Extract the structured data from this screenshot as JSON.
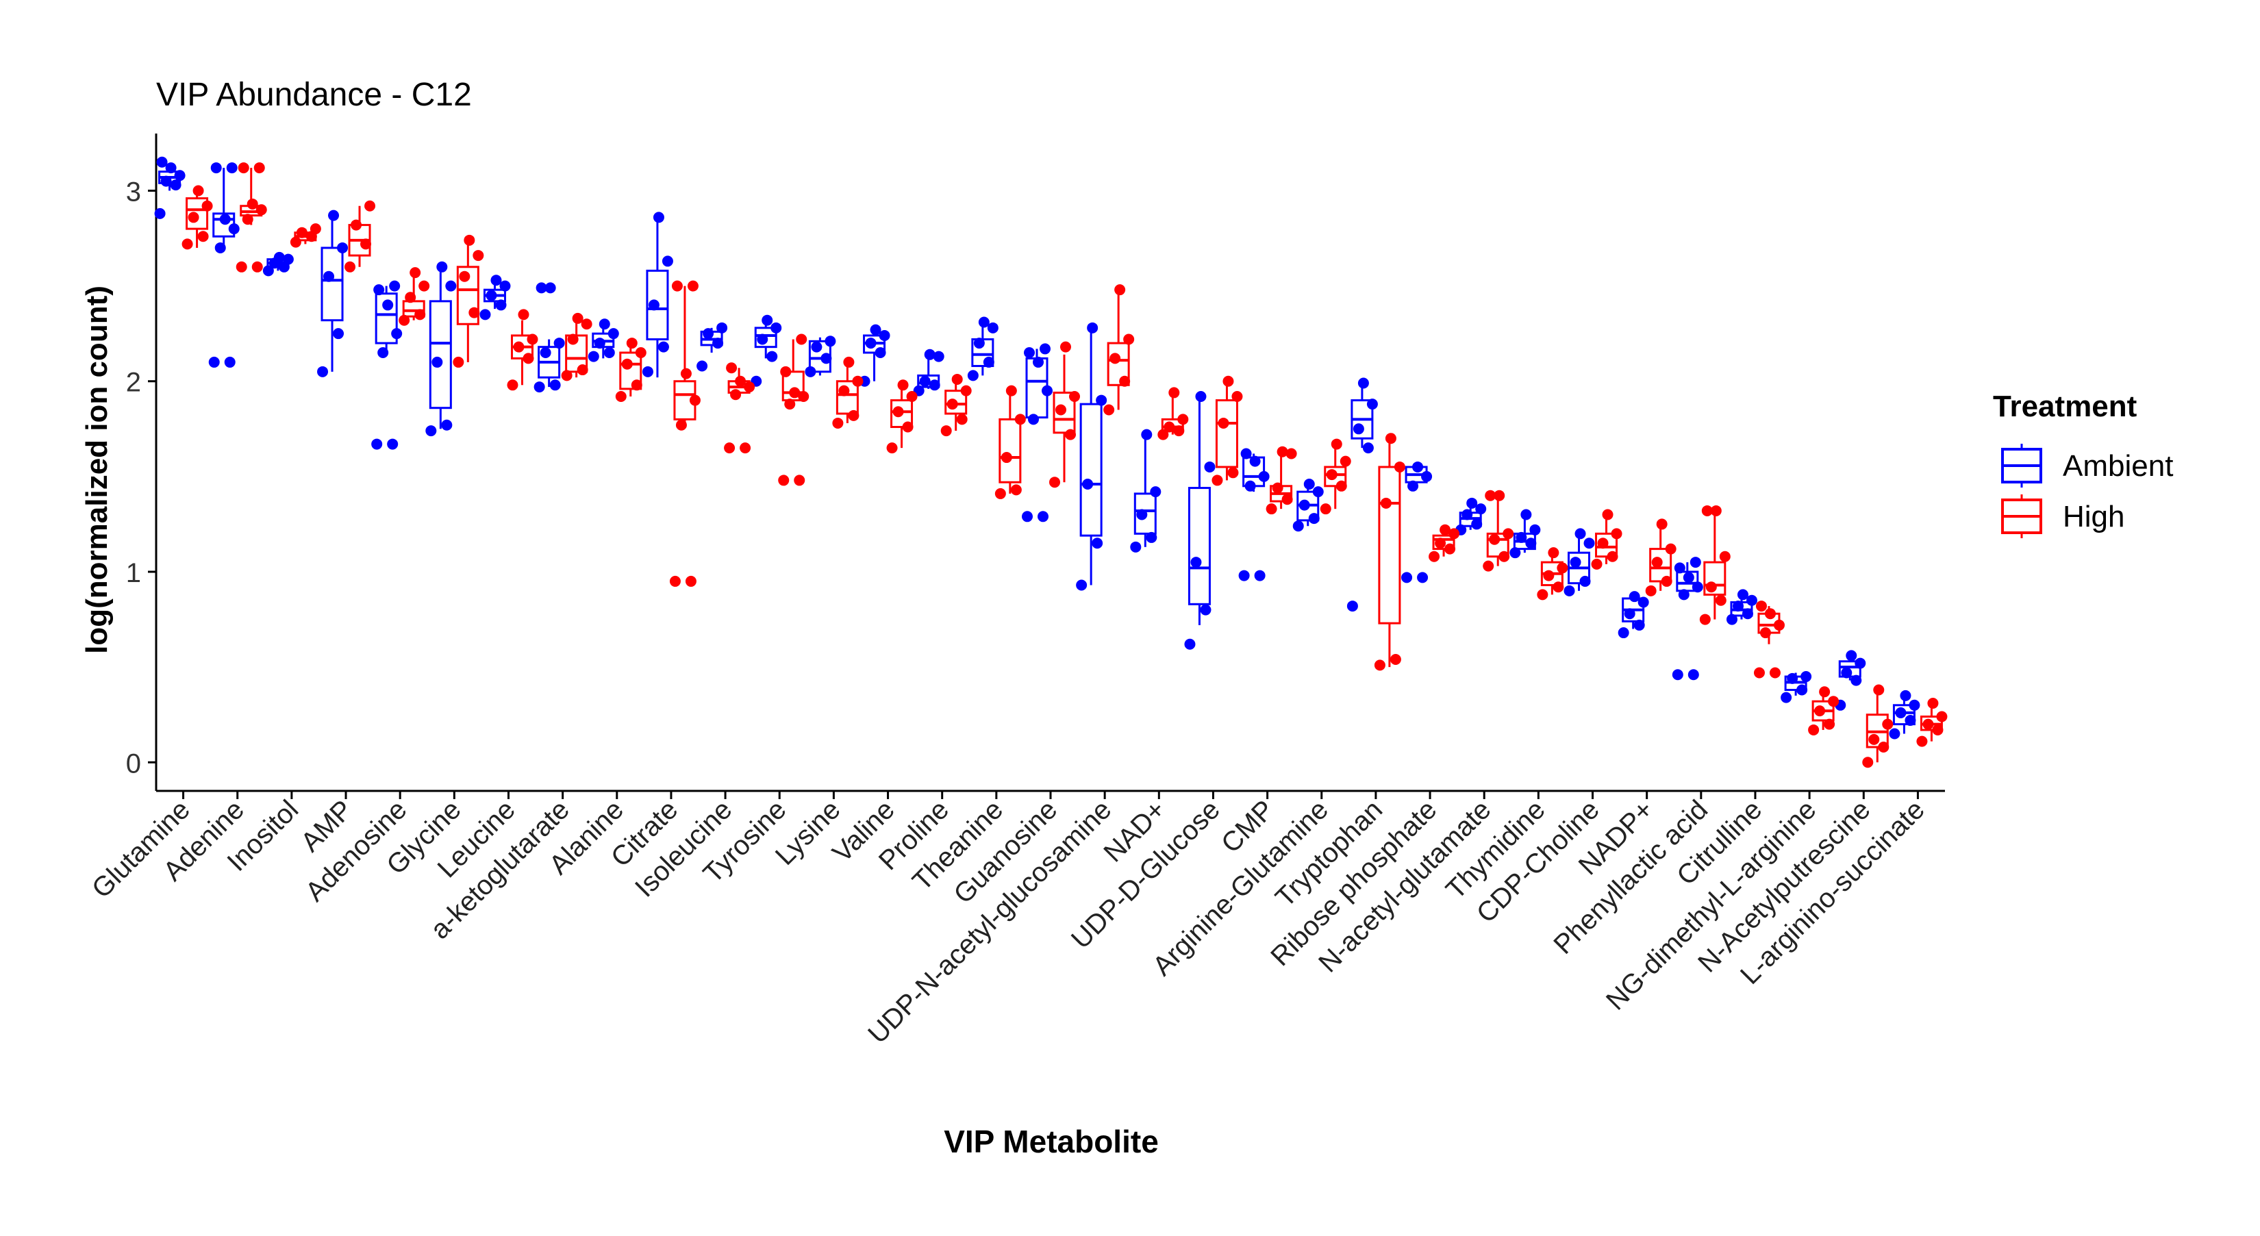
{
  "chart_data": {
    "type": "box",
    "title": "VIP Abundance - C12",
    "xlabel": "VIP Metabolite",
    "ylabel": "log(normalized ion count)",
    "ylim": [
      -0.15,
      3.3
    ],
    "yticks": [
      0,
      1,
      2,
      3
    ],
    "legend": {
      "title": "Treatment",
      "position": "right"
    },
    "colors": {
      "Ambient": "#0000ff",
      "High": "#ff0000"
    },
    "categories": [
      "Glutamine",
      "Adenine",
      "Inositol",
      "AMP",
      "Adenosine",
      "Glycine",
      "Leucine",
      "a-ketoglutarate",
      "Alanine",
      "Citrate",
      "Isoleucine",
      "Tyrosine",
      "Lysine",
      "Valine",
      "Proline",
      "Theanine",
      "Guanosine",
      "UDP-N-acetyl-glucosamine",
      "NAD+",
      "UDP-D-Glucose",
      "CMP",
      "Arginine-Glutamine",
      "Tryptophan",
      "Ribose phosphate",
      "N-acetyl-glutamate",
      "Thymidine",
      "CDP-Choline",
      "NADP+",
      "Phenyllactic acid",
      "Citrulline",
      "NG-dimethyl-L-arginine",
      "N-Acetylputrescine",
      "L-arginino-succinate"
    ],
    "series": [
      {
        "name": "Ambient",
        "boxes": [
          [
            3.0,
            3.04,
            3.07,
            3.1,
            3.14
          ],
          [
            2.7,
            2.76,
            2.85,
            2.88,
            3.12
          ],
          [
            2.58,
            2.6,
            2.62,
            2.64,
            2.65
          ],
          [
            2.05,
            2.32,
            2.53,
            2.7,
            2.87
          ],
          [
            2.15,
            2.2,
            2.35,
            2.46,
            2.5
          ],
          [
            1.75,
            1.86,
            2.2,
            2.42,
            2.6
          ],
          [
            2.38,
            2.42,
            2.45,
            2.48,
            2.52
          ],
          [
            1.97,
            2.02,
            2.1,
            2.18,
            2.22
          ],
          [
            2.12,
            2.18,
            2.21,
            2.25,
            2.3
          ],
          [
            2.02,
            2.22,
            2.38,
            2.58,
            2.86
          ],
          [
            2.15,
            2.19,
            2.22,
            2.26,
            2.28
          ],
          [
            2.12,
            2.18,
            2.24,
            2.28,
            2.32
          ],
          [
            2.03,
            2.05,
            2.12,
            2.21,
            2.23
          ],
          [
            2.0,
            2.15,
            2.2,
            2.24,
            2.27
          ],
          [
            1.96,
            1.97,
            1.99,
            2.03,
            2.14
          ],
          [
            2.03,
            2.08,
            2.14,
            2.22,
            2.3
          ],
          [
            1.8,
            1.81,
            2.0,
            2.12,
            2.17
          ],
          [
            0.93,
            1.19,
            1.46,
            1.88,
            2.28
          ],
          [
            1.13,
            1.2,
            1.32,
            1.41,
            1.72
          ],
          [
            0.72,
            0.83,
            1.02,
            1.44,
            1.92
          ],
          [
            1.42,
            1.45,
            1.5,
            1.6,
            1.62
          ],
          [
            1.24,
            1.27,
            1.35,
            1.42,
            1.46
          ],
          [
            1.65,
            1.7,
            1.8,
            1.9,
            1.99
          ],
          [
            1.45,
            1.47,
            1.51,
            1.55,
            1.55
          ],
          [
            1.22,
            1.24,
            1.28,
            1.31,
            1.36
          ],
          [
            1.1,
            1.12,
            1.16,
            1.2,
            1.3
          ],
          [
            0.9,
            0.94,
            1.02,
            1.1,
            1.2
          ],
          [
            0.7,
            0.74,
            0.8,
            0.86,
            0.87
          ],
          [
            0.88,
            0.9,
            0.94,
            1.0,
            1.05
          ],
          [
            0.75,
            0.77,
            0.8,
            0.84,
            0.87
          ],
          [
            0.35,
            0.38,
            0.42,
            0.45,
            0.47
          ],
          [
            0.43,
            0.45,
            0.5,
            0.53,
            0.56
          ],
          [
            0.15,
            0.2,
            0.26,
            0.3,
            0.35
          ]
        ],
        "points": [
          [
            2.88,
            3.03,
            3.05,
            3.08,
            3.12,
            3.15
          ],
          [
            2.1,
            2.1,
            2.7,
            2.8,
            2.85,
            3.12,
            3.12
          ],
          [
            2.58,
            2.6,
            2.62,
            2.64,
            2.65
          ],
          [
            2.05,
            2.25,
            2.55,
            2.7,
            2.87
          ],
          [
            1.67,
            1.67,
            2.15,
            2.25,
            2.4,
            2.48,
            2.5
          ],
          [
            1.74,
            1.77,
            2.1,
            2.5,
            2.6
          ],
          [
            2.35,
            2.4,
            2.45,
            2.5,
            2.53
          ],
          [
            1.97,
            1.98,
            2.15,
            2.2,
            2.49,
            2.49
          ],
          [
            2.13,
            2.15,
            2.2,
            2.25,
            2.3
          ],
          [
            2.05,
            2.18,
            2.4,
            2.63,
            2.86
          ],
          [
            2.08,
            2.2,
            2.25,
            2.28
          ],
          [
            2.0,
            2.13,
            2.22,
            2.28,
            2.32
          ],
          [
            2.05,
            2.12,
            2.18,
            2.21
          ],
          [
            2.0,
            2.15,
            2.2,
            2.24,
            2.27
          ],
          [
            1.95,
            1.98,
            2.0,
            2.13,
            2.14
          ],
          [
            2.03,
            2.1,
            2.2,
            2.28,
            2.31
          ],
          [
            1.29,
            1.29,
            1.8,
            1.95,
            2.1,
            2.15,
            2.17
          ],
          [
            0.93,
            1.15,
            1.46,
            1.9,
            2.28
          ],
          [
            1.13,
            1.18,
            1.3,
            1.42,
            1.72
          ],
          [
            0.62,
            0.8,
            1.05,
            1.55,
            1.92
          ],
          [
            0.98,
            0.98,
            1.45,
            1.5,
            1.58,
            1.62
          ],
          [
            1.24,
            1.28,
            1.35,
            1.42,
            1.46
          ],
          [
            0.82,
            1.65,
            1.75,
            1.88,
            1.99
          ],
          [
            0.97,
            0.97,
            1.45,
            1.5,
            1.55
          ],
          [
            1.22,
            1.25,
            1.3,
            1.33,
            1.36
          ],
          [
            1.1,
            1.15,
            1.18,
            1.22,
            1.3
          ],
          [
            0.9,
            0.95,
            1.05,
            1.15,
            1.2
          ],
          [
            0.68,
            0.72,
            0.78,
            0.84,
            0.87
          ],
          [
            0.46,
            0.46,
            0.88,
            0.92,
            0.97,
            1.02,
            1.05
          ],
          [
            0.75,
            0.78,
            0.82,
            0.85,
            0.88
          ],
          [
            0.34,
            0.38,
            0.44,
            0.45
          ],
          [
            0.3,
            0.43,
            0.47,
            0.52,
            0.56
          ],
          [
            0.15,
            0.22,
            0.26,
            0.3,
            0.35
          ]
        ]
      },
      {
        "name": "High",
        "boxes": [
          [
            2.7,
            2.8,
            2.9,
            2.96,
            3.0
          ],
          [
            2.82,
            2.87,
            2.89,
            2.92,
            3.12
          ],
          [
            2.72,
            2.74,
            2.76,
            2.78,
            2.8
          ],
          [
            2.6,
            2.66,
            2.74,
            2.82,
            2.92
          ],
          [
            2.32,
            2.34,
            2.37,
            2.42,
            2.57
          ],
          [
            2.1,
            2.3,
            2.48,
            2.6,
            2.74
          ],
          [
            1.98,
            2.12,
            2.18,
            2.24,
            2.32
          ],
          [
            2.02,
            2.05,
            2.12,
            2.24,
            2.32
          ],
          [
            1.92,
            1.96,
            2.09,
            2.15,
            2.2
          ],
          [
            1.77,
            1.8,
            1.93,
            2.0,
            2.5
          ],
          [
            1.92,
            1.94,
            1.97,
            2.0,
            2.07
          ],
          [
            1.88,
            1.9,
            1.94,
            2.05,
            2.22
          ],
          [
            1.78,
            1.83,
            1.93,
            2.0,
            2.1
          ],
          [
            1.65,
            1.76,
            1.84,
            1.9,
            1.98
          ],
          [
            1.74,
            1.83,
            1.88,
            1.95,
            2.01
          ],
          [
            1.41,
            1.47,
            1.6,
            1.8,
            1.95
          ],
          [
            1.47,
            1.73,
            1.8,
            1.94,
            2.14
          ],
          [
            1.85,
            1.98,
            2.11,
            2.2,
            2.48
          ],
          [
            1.72,
            1.74,
            1.76,
            1.8,
            1.93
          ],
          [
            1.48,
            1.55,
            1.78,
            1.9,
            2.0
          ],
          [
            1.33,
            1.37,
            1.41,
            1.45,
            1.62
          ],
          [
            1.33,
            1.45,
            1.51,
            1.55,
            1.67
          ],
          [
            0.5,
            0.73,
            1.36,
            1.55,
            1.7
          ],
          [
            1.08,
            1.12,
            1.17,
            1.19,
            1.22
          ],
          [
            1.03,
            1.08,
            1.17,
            1.2,
            1.4
          ],
          [
            0.88,
            0.93,
            0.99,
            1.05,
            1.1
          ],
          [
            1.04,
            1.08,
            1.13,
            1.2,
            1.3
          ],
          [
            0.9,
            0.95,
            1.02,
            1.12,
            1.25
          ],
          [
            0.75,
            0.88,
            0.93,
            1.05,
            1.32
          ],
          [
            0.62,
            0.68,
            0.72,
            0.78,
            0.82
          ],
          [
            0.17,
            0.22,
            0.27,
            0.32,
            0.37
          ],
          [
            0.0,
            0.08,
            0.16,
            0.25,
            0.38
          ],
          [
            0.11,
            0.17,
            0.2,
            0.24,
            0.31
          ]
        ],
        "points": [
          [
            2.72,
            2.76,
            2.86,
            2.92,
            3.0
          ],
          [
            2.6,
            2.6,
            2.85,
            2.9,
            2.93,
            3.12,
            3.12
          ],
          [
            2.73,
            2.76,
            2.78,
            2.8
          ],
          [
            2.6,
            2.72,
            2.82,
            2.92
          ],
          [
            2.32,
            2.35,
            2.44,
            2.5,
            2.57
          ],
          [
            2.1,
            2.36,
            2.55,
            2.66,
            2.74
          ],
          [
            1.98,
            2.12,
            2.18,
            2.22,
            2.35
          ],
          [
            2.03,
            2.06,
            2.22,
            2.3,
            2.33
          ],
          [
            1.92,
            1.98,
            2.09,
            2.15,
            2.2
          ],
          [
            0.95,
            0.95,
            1.77,
            1.9,
            2.04,
            2.5,
            2.5
          ],
          [
            1.65,
            1.65,
            1.93,
            1.97,
            2.0,
            2.07
          ],
          [
            1.48,
            1.48,
            1.88,
            1.92,
            1.94,
            2.05,
            2.22
          ],
          [
            1.78,
            1.82,
            1.95,
            2.0,
            2.1
          ],
          [
            1.65,
            1.76,
            1.84,
            1.92,
            1.98
          ],
          [
            1.74,
            1.8,
            1.88,
            1.95,
            2.01
          ],
          [
            1.41,
            1.43,
            1.6,
            1.8,
            1.95
          ],
          [
            1.47,
            1.72,
            1.85,
            1.92,
            2.18
          ],
          [
            1.85,
            2.0,
            2.12,
            2.22,
            2.48
          ],
          [
            1.72,
            1.74,
            1.76,
            1.8,
            1.94
          ],
          [
            1.48,
            1.52,
            1.78,
            1.92,
            2.0
          ],
          [
            1.33,
            1.38,
            1.44,
            1.62,
            1.63
          ],
          [
            1.33,
            1.45,
            1.51,
            1.58,
            1.67
          ],
          [
            0.51,
            0.54,
            1.36,
            1.55,
            1.7
          ],
          [
            1.08,
            1.12,
            1.15,
            1.2,
            1.22
          ],
          [
            1.03,
            1.08,
            1.17,
            1.2,
            1.4,
            1.4
          ],
          [
            0.88,
            0.92,
            0.98,
            1.02,
            1.1
          ],
          [
            1.04,
            1.08,
            1.15,
            1.2,
            1.3
          ],
          [
            0.9,
            0.95,
            1.05,
            1.12,
            1.25
          ],
          [
            0.75,
            0.85,
            0.92,
            1.08,
            1.32,
            1.32
          ],
          [
            0.47,
            0.47,
            0.68,
            0.72,
            0.78,
            0.82
          ],
          [
            0.17,
            0.2,
            0.27,
            0.32,
            0.37
          ],
          [
            0.0,
            0.08,
            0.12,
            0.2,
            0.38
          ],
          [
            0.11,
            0.17,
            0.2,
            0.24,
            0.31
          ]
        ]
      }
    ]
  }
}
